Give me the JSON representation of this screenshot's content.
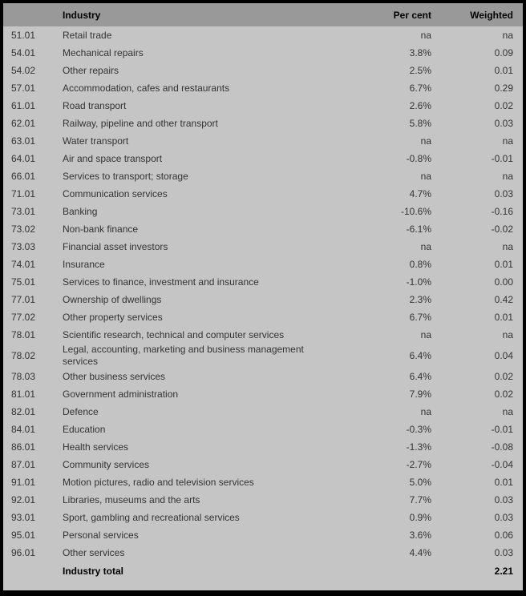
{
  "colors": {
    "header_bg": "#999999",
    "body_bg": "#c5c5c5",
    "border": "#000000",
    "text": "#333333"
  },
  "table": {
    "columns": {
      "code": "",
      "industry": "Industry",
      "percent": "Per cent",
      "weighted": "Weighted"
    },
    "rows": [
      {
        "code": "51.01",
        "industry": "Retail trade",
        "percent": "na",
        "weighted": "na"
      },
      {
        "code": "54.01",
        "industry": "Mechanical repairs",
        "percent": "3.8%",
        "weighted": "0.09"
      },
      {
        "code": "54.02",
        "industry": "Other repairs",
        "percent": "2.5%",
        "weighted": "0.01"
      },
      {
        "code": "57.01",
        "industry": "Accommodation, cafes and restaurants",
        "percent": "6.7%",
        "weighted": "0.29"
      },
      {
        "code": "61.01",
        "industry": "Road transport",
        "percent": "2.6%",
        "weighted": "0.02"
      },
      {
        "code": "62.01",
        "industry": "Railway, pipeline and other transport",
        "percent": "5.8%",
        "weighted": "0.03"
      },
      {
        "code": "63.01",
        "industry": "Water transport",
        "percent": "na",
        "weighted": "na"
      },
      {
        "code": "64.01",
        "industry": "Air and space transport",
        "percent": "-0.8%",
        "weighted": "-0.01"
      },
      {
        "code": "66.01",
        "industry": "Services to transport; storage",
        "percent": "na",
        "weighted": "na"
      },
      {
        "code": "71.01",
        "industry": "Communication services",
        "percent": "4.7%",
        "weighted": "0.03"
      },
      {
        "code": "73.01",
        "industry": "Banking",
        "percent": "-10.6%",
        "weighted": "-0.16"
      },
      {
        "code": "73.02",
        "industry": "Non-bank finance",
        "percent": "-6.1%",
        "weighted": "-0.02"
      },
      {
        "code": "73.03",
        "industry": "Financial asset investors",
        "percent": "na",
        "weighted": "na"
      },
      {
        "code": "74.01",
        "industry": "Insurance",
        "percent": "0.8%",
        "weighted": "0.01"
      },
      {
        "code": "75.01",
        "industry": "Services to finance, investment and insurance",
        "percent": "-1.0%",
        "weighted": "0.00"
      },
      {
        "code": "77.01",
        "industry": "Ownership of dwellings",
        "percent": "2.3%",
        "weighted": "0.42"
      },
      {
        "code": "77.02",
        "industry": "Other property services",
        "percent": "6.7%",
        "weighted": "0.01"
      },
      {
        "code": "78.01",
        "industry": "Scientific research, technical and computer services",
        "percent": "na",
        "weighted": "na"
      },
      {
        "code": "78.02",
        "industry": "Legal, accounting, marketing and business management services",
        "percent": "6.4%",
        "weighted": "0.04"
      },
      {
        "code": "78.03",
        "industry": "Other business services",
        "percent": "6.4%",
        "weighted": "0.02"
      },
      {
        "code": "81.01",
        "industry": "Government administration",
        "percent": "7.9%",
        "weighted": "0.02"
      },
      {
        "code": "82.01",
        "industry": "Defence",
        "percent": "na",
        "weighted": "na"
      },
      {
        "code": "84.01",
        "industry": "Education",
        "percent": "-0.3%",
        "weighted": "-0.01"
      },
      {
        "code": "86.01",
        "industry": "Health services",
        "percent": "-1.3%",
        "weighted": "-0.08"
      },
      {
        "code": "87.01",
        "industry": "Community services",
        "percent": "-2.7%",
        "weighted": "-0.04"
      },
      {
        "code": "91.01",
        "industry": "Motion pictures, radio and television services",
        "percent": "5.0%",
        "weighted": "0.01"
      },
      {
        "code": "92.01",
        "industry": "Libraries, museums and the arts",
        "percent": "7.7%",
        "weighted": "0.03"
      },
      {
        "code": "93.01",
        "industry": "Sport, gambling and recreational services",
        "percent": "0.9%",
        "weighted": "0.03"
      },
      {
        "code": "95.01",
        "industry": "Personal services",
        "percent": "3.6%",
        "weighted": "0.06"
      },
      {
        "code": "96.01",
        "industry": "Other services",
        "percent": "4.4%",
        "weighted": "0.03"
      }
    ],
    "total": {
      "code": "",
      "industry": "Industry total",
      "percent": "",
      "weighted": "2.21"
    }
  }
}
